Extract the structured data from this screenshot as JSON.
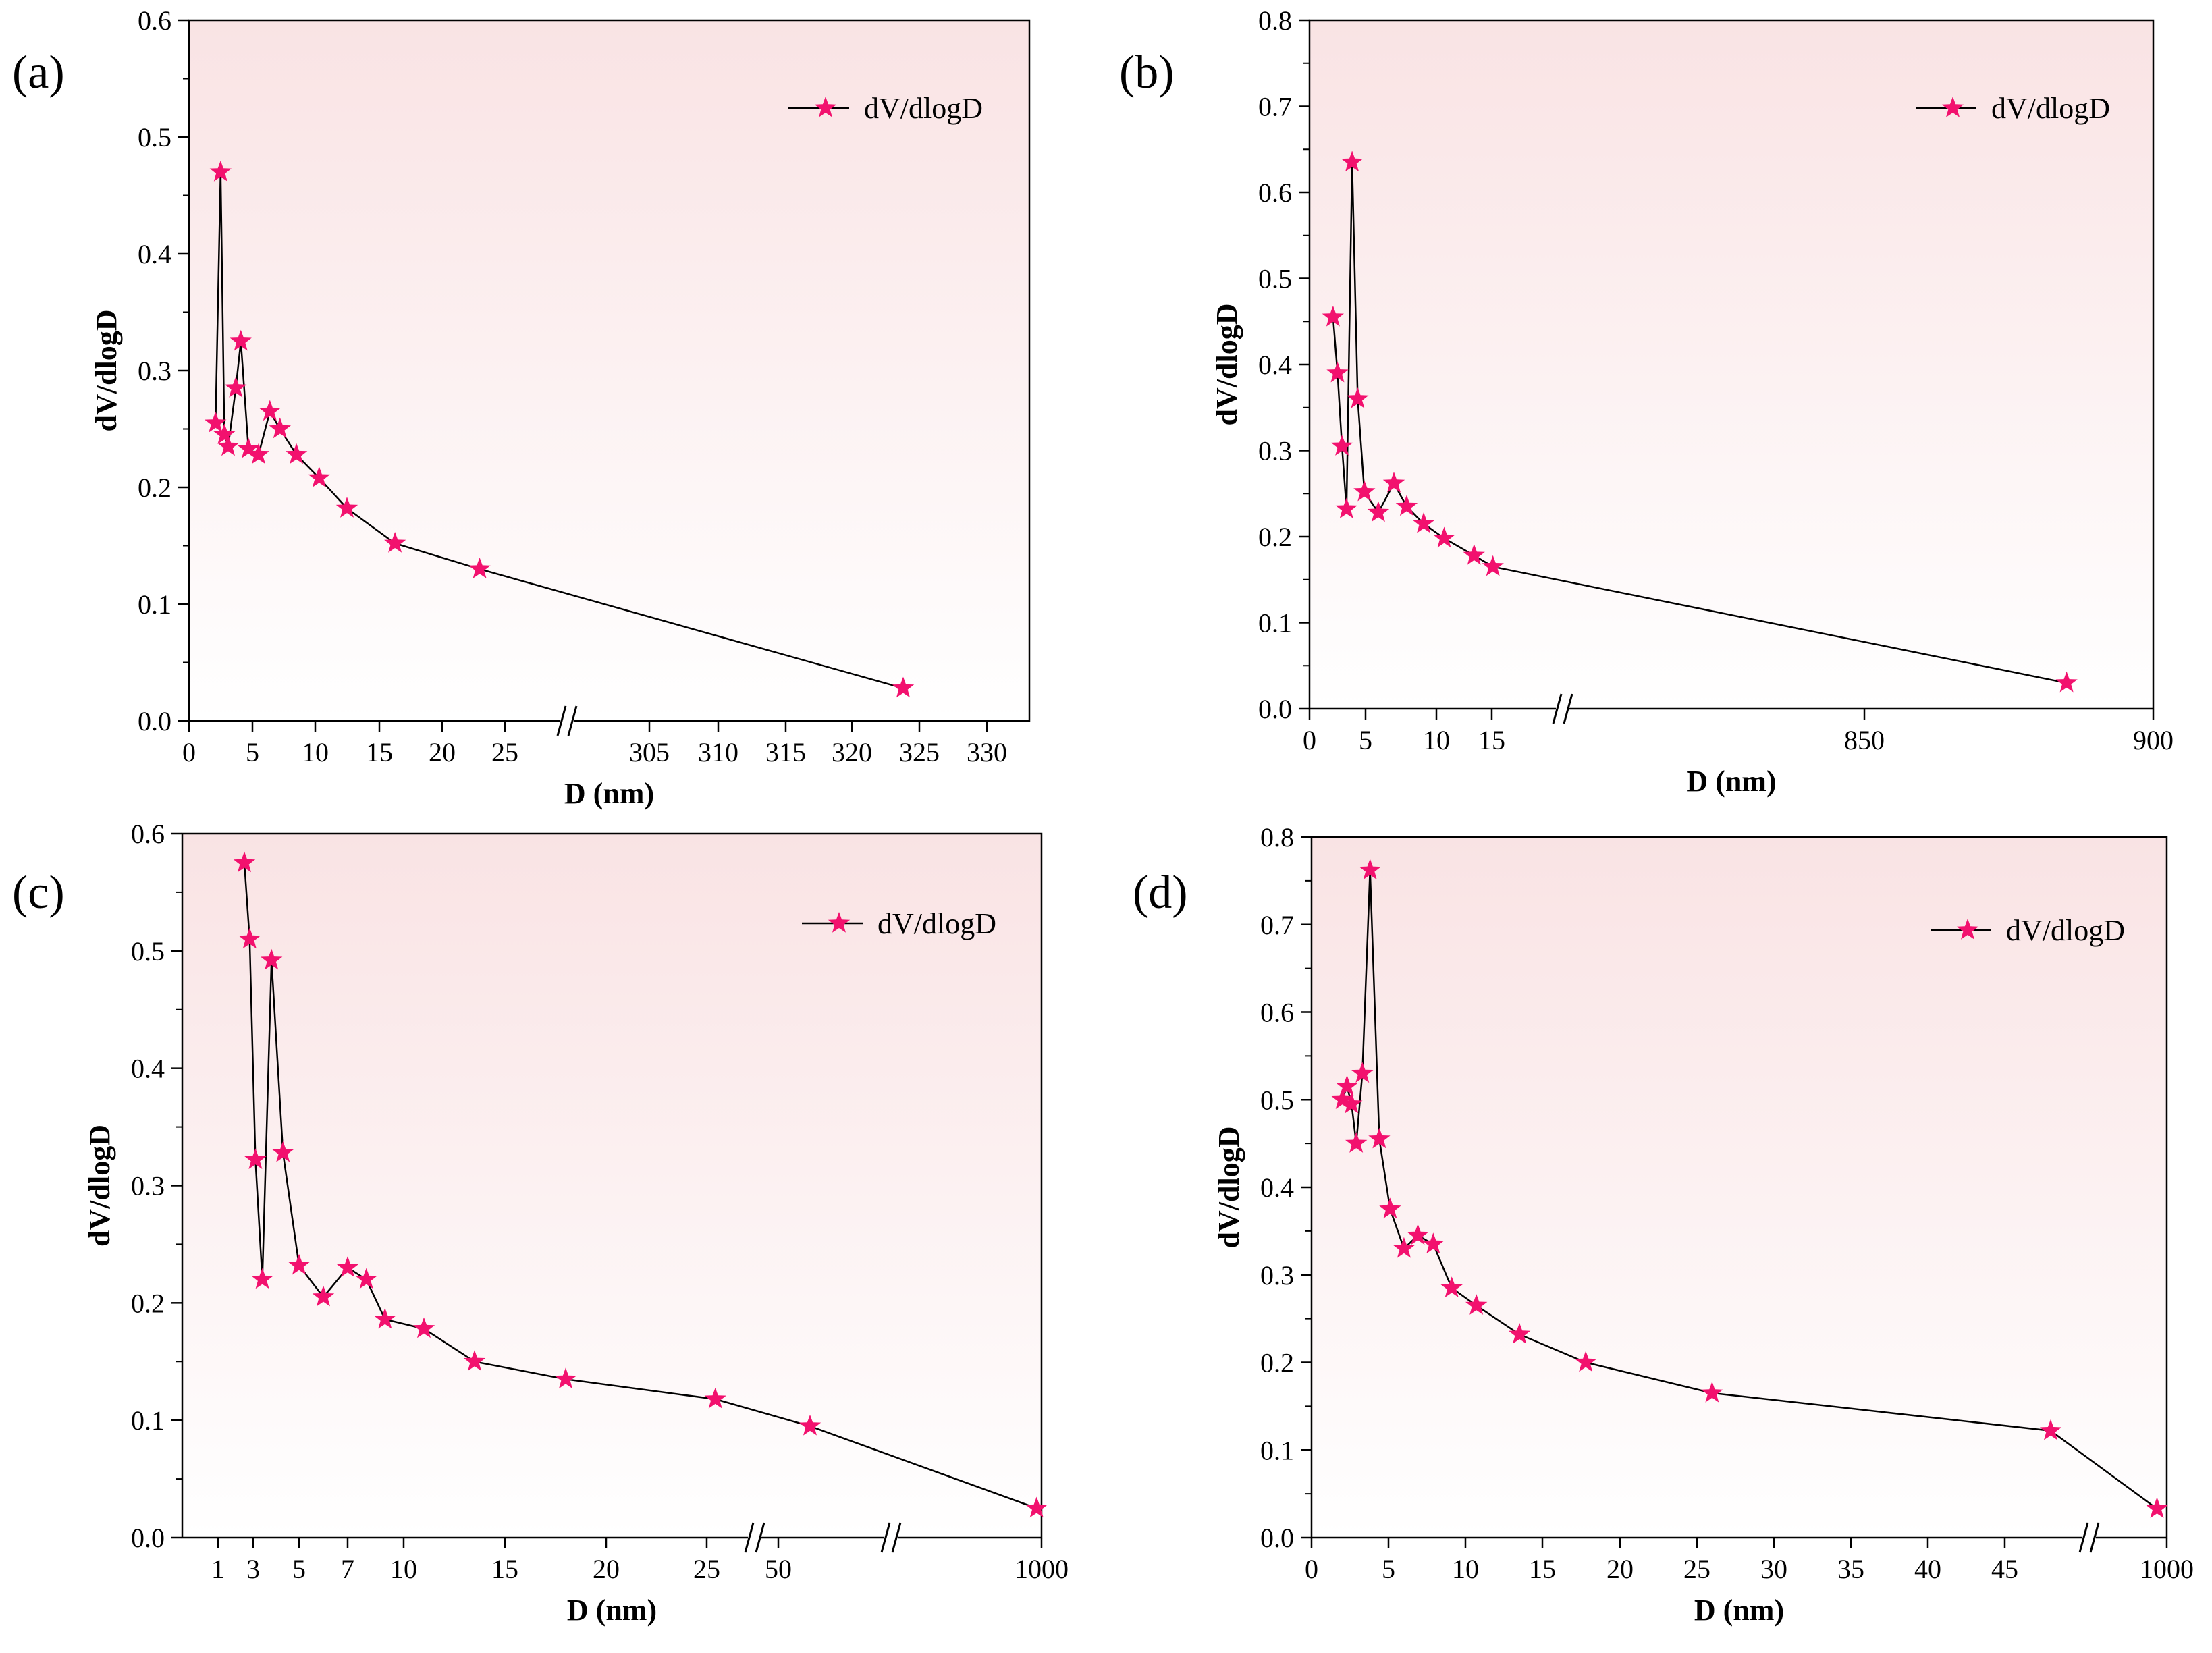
{
  "colors": {
    "plot_bg_top": "#f9e3e4",
    "plot_bg_bottom": "#ffffff",
    "marker": "#f2116e",
    "line": "#000000"
  },
  "chart_data": [
    {
      "panel": "(a)",
      "type": "line",
      "xlabel": "D (nm)",
      "ylabel": "dV/dlogD",
      "ylim": [
        0,
        0.6
      ],
      "yticks": [
        "0.0",
        "0.1",
        "0.2",
        "0.3",
        "0.4",
        "0.5",
        "0.6"
      ],
      "xticks": [
        "0",
        "5",
        "10",
        "15",
        "20",
        "25",
        "305",
        "310",
        "315",
        "320",
        "325",
        "330"
      ],
      "legend": "dV/dlogD",
      "legend_position": "top-right",
      "x_axis_break": true,
      "series": [
        {
          "name": "dV/dlogD",
          "x": [
            2.1,
            2.5,
            2.8,
            3.1,
            3.7,
            4.1,
            4.7,
            5.5,
            6.4,
            7.2,
            8.5,
            10.3,
            12.5,
            16.3,
            23.0,
            323.8
          ],
          "y": [
            0.255,
            0.47,
            0.245,
            0.235,
            0.285,
            0.325,
            0.233,
            0.228,
            0.265,
            0.25,
            0.228,
            0.208,
            0.182,
            0.152,
            0.13,
            0.028
          ]
        }
      ]
    },
    {
      "panel": "(b)",
      "type": "line",
      "xlabel": "D (nm)",
      "ylabel": "dV/dlogD",
      "ylim": [
        0,
        0.8
      ],
      "yticks": [
        "0.0",
        "0.1",
        "0.2",
        "0.3",
        "0.4",
        "0.5",
        "0.6",
        "0.7",
        "0.8"
      ],
      "xticks": [
        "0",
        "5",
        "10",
        "15",
        "850",
        "900"
      ],
      "legend": "dV/dlogD",
      "legend_position": "top-right",
      "x_axis_break": true,
      "series": [
        {
          "name": "dV/dlogD",
          "x": [
            2.1,
            2.5,
            2.9,
            3.3,
            3.8,
            4.3,
            4.9,
            5.9,
            7.0,
            7.9,
            9.1,
            10.7,
            13.4,
            17.6,
            885
          ],
          "y": [
            0.455,
            0.39,
            0.305,
            0.232,
            0.635,
            0.36,
            0.252,
            0.228,
            0.262,
            0.235,
            0.215,
            0.198,
            0.178,
            0.165,
            0.03
          ]
        }
      ]
    },
    {
      "panel": "(c)",
      "type": "line",
      "xlabel": "D (nm)",
      "ylabel": "dV/dlogD",
      "ylim": [
        0,
        0.6
      ],
      "yticks": [
        "0.0",
        "0.1",
        "0.2",
        "0.3",
        "0.4",
        "0.5",
        "0.6"
      ],
      "xticks": [
        "1",
        "3",
        "5",
        "7",
        "10",
        "15",
        "20",
        "25",
        "50",
        "1000"
      ],
      "legend": "dV/dlogD",
      "legend_position": "top-right",
      "x_axis_break": true,
      "series": [
        {
          "name": "dV/dlogD",
          "x": [
            2.5,
            2.8,
            3.1,
            3.4,
            3.8,
            4.3,
            5,
            6,
            7,
            8,
            9,
            11,
            13.5,
            18,
            28,
            62,
            980
          ],
          "y": [
            0.575,
            0.51,
            0.322,
            0.22,
            0.492,
            0.328,
            0.232,
            0.205,
            0.23,
            0.22,
            0.186,
            0.178,
            0.15,
            0.135,
            0.118,
            0.095,
            0.025
          ]
        }
      ]
    },
    {
      "panel": "(d)",
      "type": "line",
      "xlabel": "D (nm)",
      "ylabel": "dV/dlogD",
      "ylim": [
        0,
        0.8
      ],
      "yticks": [
        "0.0",
        "0.1",
        "0.2",
        "0.3",
        "0.4",
        "0.5",
        "0.6",
        "0.7",
        "0.8"
      ],
      "xticks": [
        "0",
        "5",
        "10",
        "15",
        "20",
        "25",
        "30",
        "35",
        "40",
        "45",
        "1000"
      ],
      "legend": "dV/dlogD",
      "legend_position": "top-right",
      "x_axis_break": true,
      "series": [
        {
          "name": "dV/dlogD",
          "x": [
            2.0,
            2.3,
            2.6,
            2.9,
            3.3,
            3.8,
            4.4,
            5.1,
            6.0,
            6.9,
            7.9,
            9.1,
            10.7,
            13.5,
            17.8,
            26,
            48,
            920
          ],
          "y": [
            0.5,
            0.515,
            0.495,
            0.45,
            0.53,
            0.762,
            0.455,
            0.375,
            0.33,
            0.345,
            0.335,
            0.285,
            0.265,
            0.232,
            0.2,
            0.165,
            0.122,
            0.033
          ]
        }
      ]
    }
  ]
}
